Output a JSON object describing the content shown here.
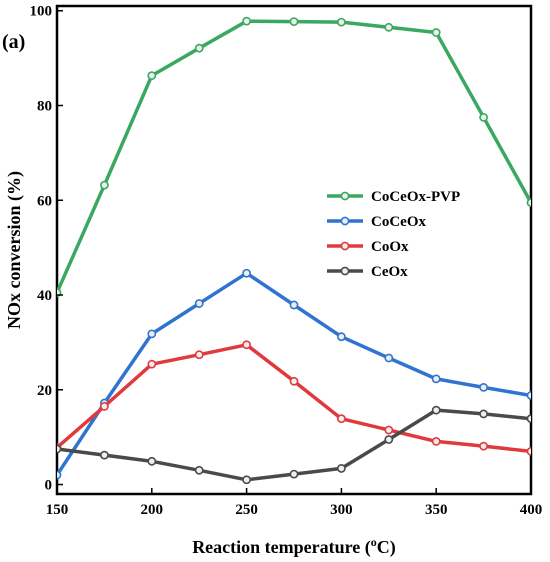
{
  "chart_data": {
    "type": "line",
    "panel_label": "(a)",
    "xlabel": "Reaction temperature (",
    "xlabel_sup": "o",
    "xlabel_end": "C)",
    "ylabel": "NOx conversion (%)",
    "xlim": [
      150,
      400
    ],
    "ylim": [
      -2,
      101
    ],
    "xticks": [
      150,
      200,
      250,
      300,
      350,
      400
    ],
    "yticks": [
      0,
      20,
      40,
      60,
      80,
      100
    ],
    "grid": false,
    "legend_position": "center-right",
    "x": [
      150,
      175,
      200,
      225,
      250,
      275,
      300,
      325,
      350,
      375,
      400
    ],
    "series": [
      {
        "name": "CoCeOx-PVP",
        "color": "#3aa860",
        "values": [
          40.5,
          63.2,
          86.3,
          92.1,
          97.8,
          97.7,
          97.6,
          96.5,
          95.4,
          77.5,
          59.5
        ]
      },
      {
        "name": "CoCeOx",
        "color": "#2f74d0",
        "values": [
          2.0,
          17.2,
          31.8,
          38.2,
          44.6,
          37.9,
          31.2,
          26.7,
          22.3,
          20.5,
          18.8
        ]
      },
      {
        "name": "CoOx",
        "color": "#e03a3e",
        "values": [
          7.8,
          16.5,
          25.4,
          27.4,
          29.5,
          21.8,
          13.9,
          11.5,
          9.1,
          8.1,
          7.0
        ]
      },
      {
        "name": "CeOx",
        "color": "#4a4a4a",
        "values": [
          7.5,
          6.2,
          4.9,
          3.0,
          1.0,
          2.2,
          3.4,
          9.5,
          15.7,
          14.9,
          13.9
        ]
      }
    ]
  }
}
